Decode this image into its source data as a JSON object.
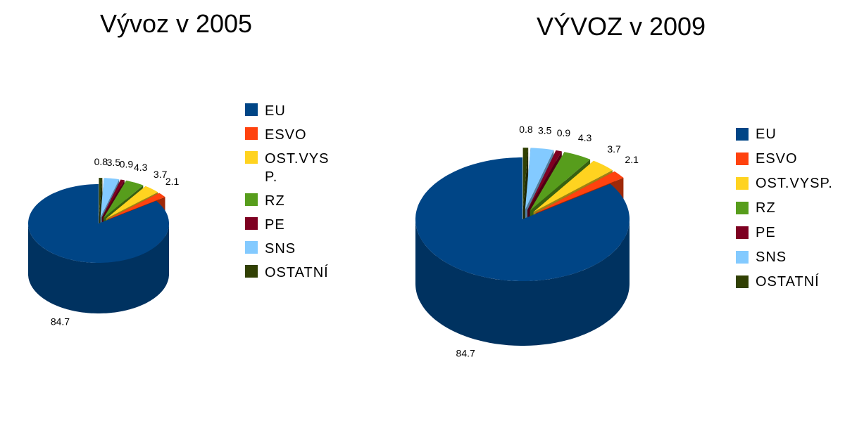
{
  "chart_data": [
    {
      "type": "pie",
      "title": "Vývoz v 2005",
      "categories": [
        "EU",
        "ESVO",
        "OST.VYSP.",
        "RZ",
        "PE",
        "SNS",
        "OSTATNÍ"
      ],
      "values": [
        84.7,
        2.1,
        3.7,
        4.3,
        0.9,
        3.5,
        0.8
      ],
      "colors": [
        "#004586",
        "#ff420e",
        "#ffd320",
        "#579d1c",
        "#7e0021",
        "#83caff",
        "#314004"
      ]
    },
    {
      "type": "pie",
      "title": "VÝVOZ v 2009",
      "categories": [
        "EU",
        "ESVO",
        "OST.VYSP.",
        "RZ",
        "PE",
        "SNS",
        "OSTATNÍ"
      ],
      "values": [
        84.7,
        2.1,
        3.7,
        4.3,
        0.9,
        3.5,
        0.8
      ],
      "colors": [
        "#004586",
        "#ff420e",
        "#ffd320",
        "#579d1c",
        "#7e0021",
        "#83caff",
        "#314004"
      ]
    }
  ]
}
